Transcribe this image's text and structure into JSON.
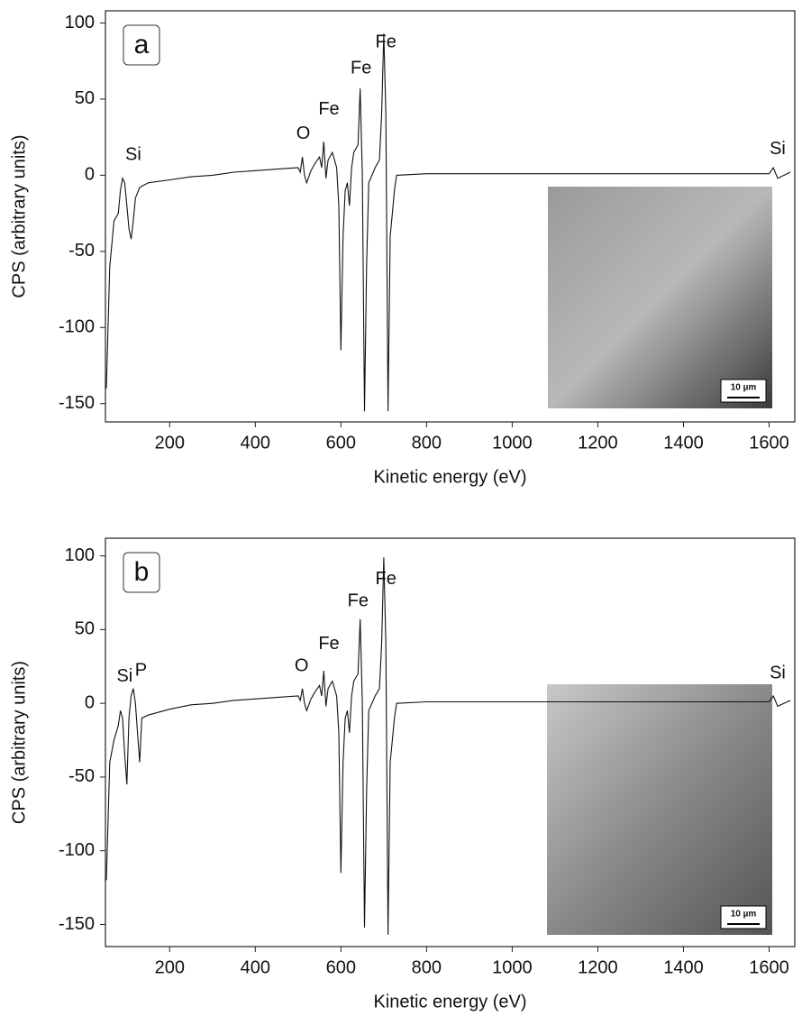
{
  "chart_data": [
    {
      "type": "line",
      "panel_label": "a",
      "xlabel": "Kinetic energy (eV)",
      "ylabel": "CPS (arbitrary units)",
      "xlim": [
        50,
        1660
      ],
      "ylim": [
        -162,
        108
      ],
      "xticks": [
        200,
        400,
        600,
        800,
        1000,
        1200,
        1400,
        1600
      ],
      "yticks": [
        -150,
        -100,
        -50,
        0,
        50,
        100
      ],
      "inset_scale": "10 µm",
      "series": [
        {
          "color": "#111111",
          "x": [
            52,
            60,
            70,
            80,
            85,
            90,
            95,
            100,
            105,
            110,
            115,
            120,
            130,
            150,
            200,
            250,
            300,
            350,
            400,
            450,
            500,
            505,
            510,
            515,
            520,
            530,
            540,
            550,
            555,
            560,
            565,
            570,
            580,
            590,
            595,
            600,
            605,
            610,
            615,
            620,
            625,
            630,
            640,
            645,
            650,
            655,
            660,
            665,
            680,
            690,
            695,
            700,
            705,
            710,
            715,
            720,
            725,
            730,
            800,
            1000,
            1200,
            1400,
            1600,
            1610,
            1620,
            1650
          ],
          "values": [
            -140,
            -60,
            -30,
            -25,
            -10,
            -2,
            -5,
            -20,
            -35,
            -42,
            -30,
            -15,
            -8,
            -5,
            -3,
            -1,
            0,
            2,
            3,
            4,
            5,
            2,
            12,
            0,
            -5,
            3,
            8,
            12,
            5,
            22,
            -2,
            10,
            15,
            5,
            -20,
            -115,
            -40,
            -10,
            -5,
            -20,
            5,
            15,
            20,
            57,
            0,
            -155,
            -60,
            -5,
            5,
            10,
            40,
            93,
            40,
            -155,
            -40,
            -25,
            -10,
            0,
            1,
            1,
            1,
            1,
            1,
            5,
            -2,
            2
          ]
        }
      ],
      "annotations": [
        {
          "text": "Si",
          "x": 115,
          "y": 13
        },
        {
          "text": "O",
          "x": 512,
          "y": 27
        },
        {
          "text": "Fe",
          "x": 572,
          "y": 43
        },
        {
          "text": "Fe",
          "x": 647,
          "y": 70
        },
        {
          "text": "Fe",
          "x": 705,
          "y": 87
        },
        {
          "text": "Si",
          "x": 1620,
          "y": 17
        }
      ]
    },
    {
      "type": "line",
      "panel_label": "b",
      "xlabel": "Kinetic energy (eV)",
      "ylabel": "CPS (arbitrary units)",
      "xlim": [
        50,
        1660
      ],
      "ylim": [
        -165,
        112
      ],
      "xticks": [
        200,
        400,
        600,
        800,
        1000,
        1200,
        1400,
        1600
      ],
      "yticks": [
        -150,
        -100,
        -50,
        0,
        50,
        100
      ],
      "inset_scale": "10 µm",
      "series": [
        {
          "color": "#111111",
          "x": [
            52,
            60,
            70,
            80,
            85,
            90,
            95,
            100,
            105,
            110,
            115,
            120,
            125,
            130,
            135,
            150,
            200,
            250,
            300,
            350,
            400,
            450,
            500,
            505,
            510,
            515,
            520,
            530,
            540,
            550,
            555,
            560,
            565,
            570,
            580,
            590,
            595,
            600,
            605,
            610,
            615,
            620,
            625,
            630,
            640,
            645,
            650,
            655,
            660,
            665,
            680,
            690,
            695,
            700,
            705,
            710,
            715,
            720,
            725,
            730,
            800,
            1000,
            1200,
            1400,
            1600,
            1610,
            1620,
            1650
          ],
          "values": [
            -120,
            -40,
            -25,
            -15,
            -5,
            -10,
            -35,
            -55,
            -10,
            5,
            10,
            0,
            -20,
            -40,
            -10,
            -8,
            -4,
            -1,
            0,
            2,
            3,
            4,
            5,
            2,
            10,
            0,
            -5,
            3,
            8,
            12,
            5,
            22,
            -2,
            10,
            15,
            5,
            -20,
            -115,
            -40,
            -10,
            -5,
            -20,
            5,
            15,
            20,
            57,
            0,
            -152,
            -60,
            -5,
            5,
            10,
            40,
            99,
            40,
            -157,
            -40,
            -25,
            -10,
            0,
            1,
            1,
            1,
            1,
            1,
            5,
            -2,
            2
          ]
        }
      ],
      "annotations": [
        {
          "text": "Si",
          "x": 95,
          "y": 18
        },
        {
          "text": "P",
          "x": 133,
          "y": 22
        },
        {
          "text": "O",
          "x": 508,
          "y": 25
        },
        {
          "text": "Fe",
          "x": 572,
          "y": 40
        },
        {
          "text": "Fe",
          "x": 640,
          "y": 69
        },
        {
          "text": "Fe",
          "x": 705,
          "y": 84
        },
        {
          "text": "Si",
          "x": 1620,
          "y": 20
        }
      ]
    }
  ]
}
